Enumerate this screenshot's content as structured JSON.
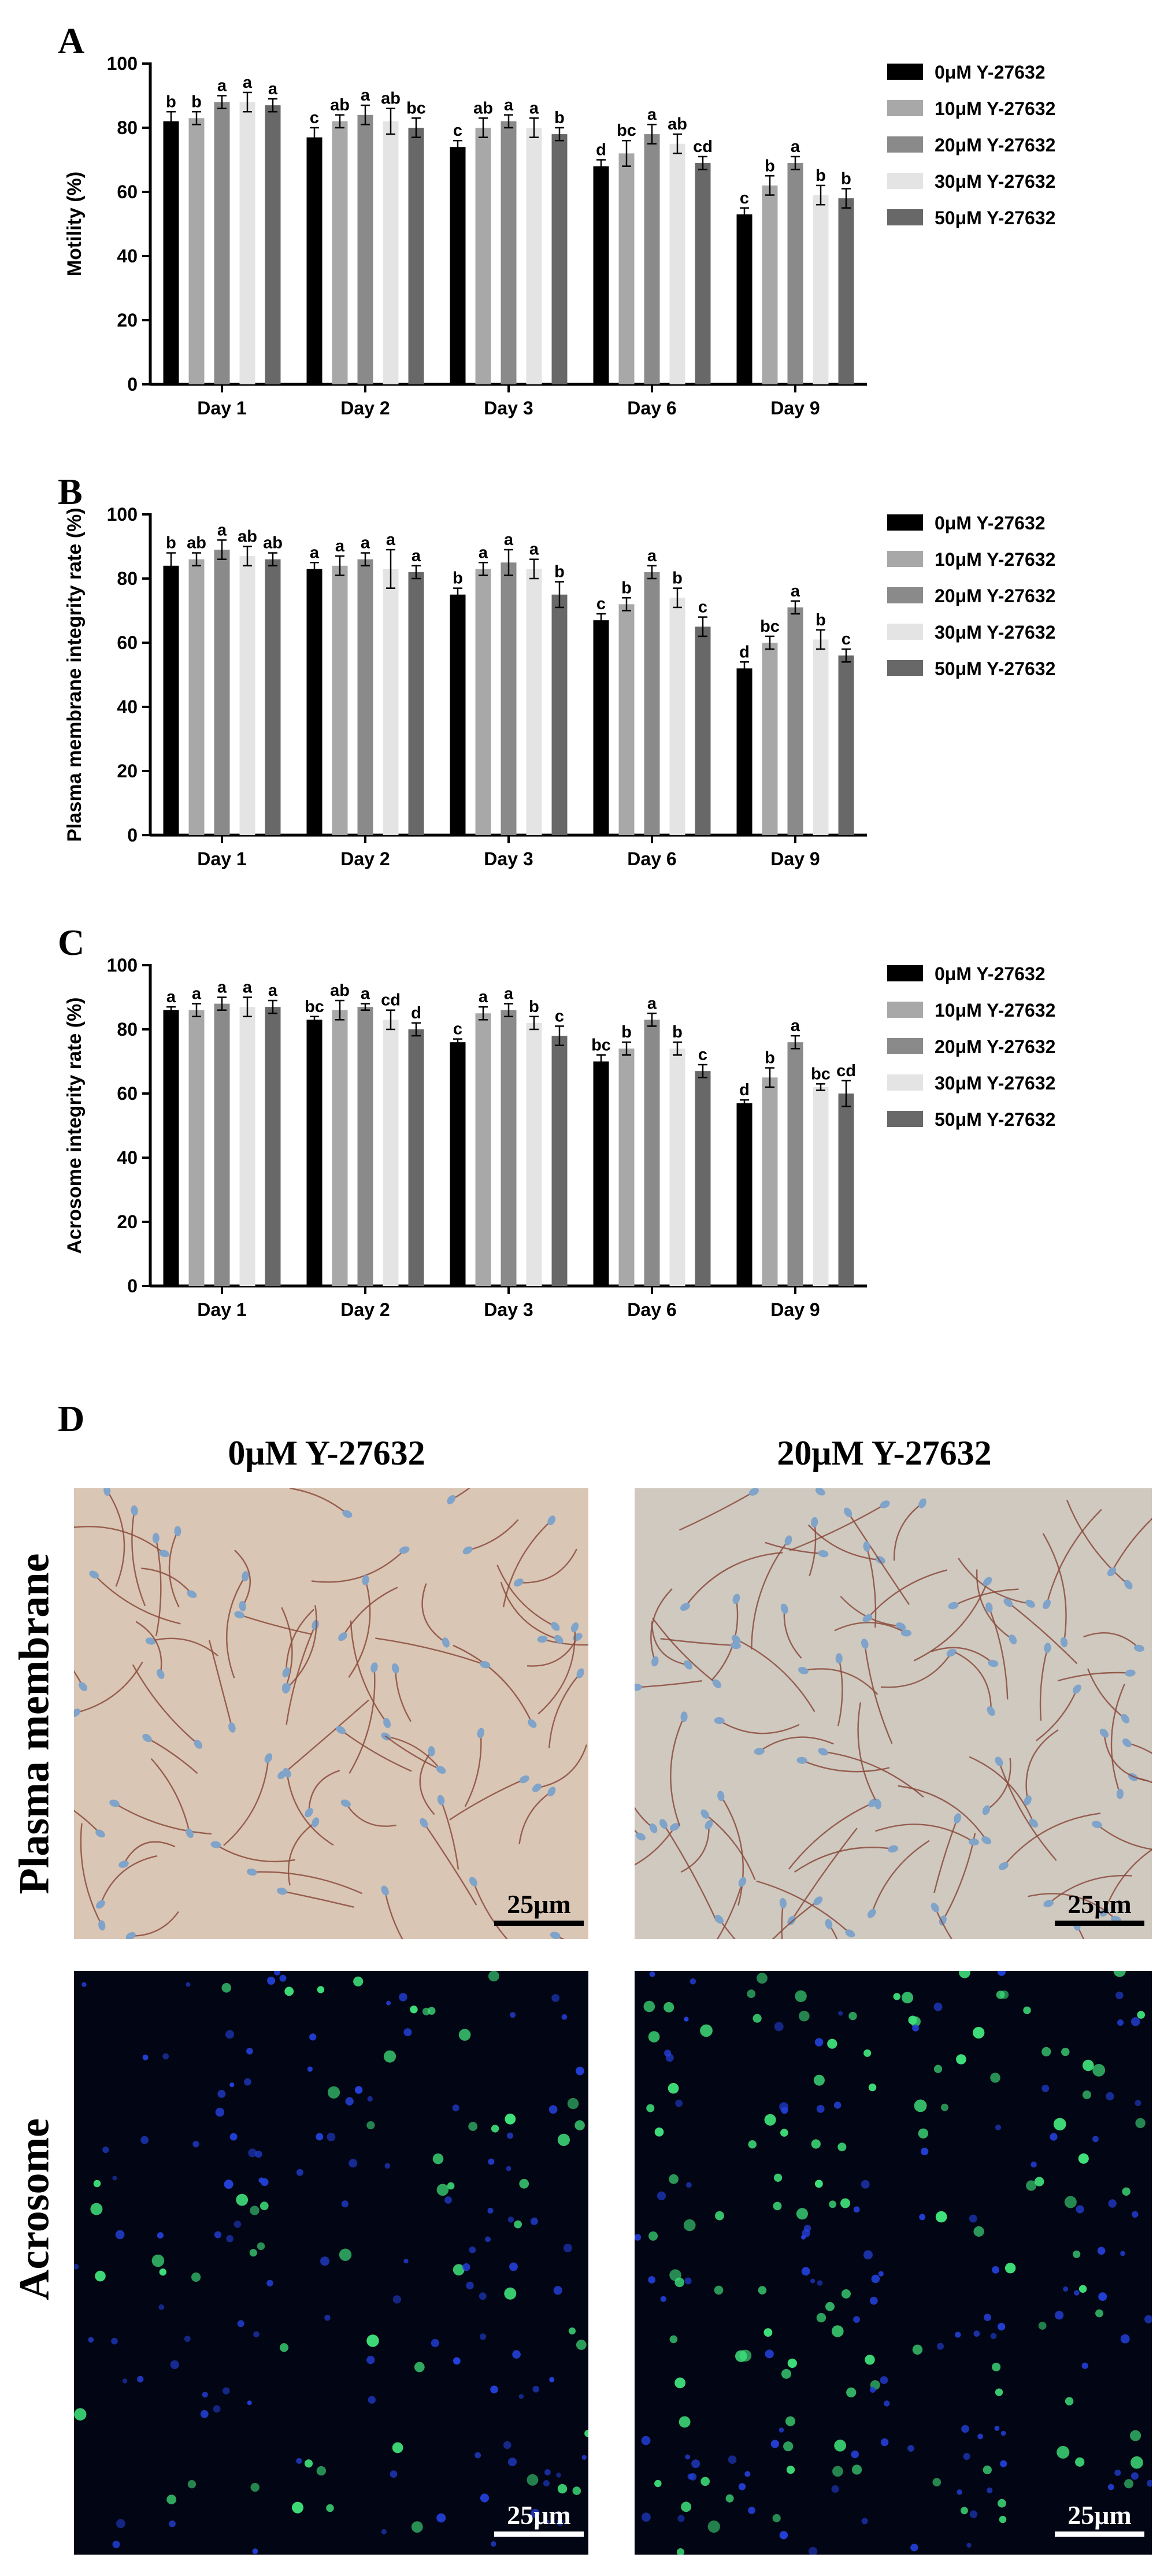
{
  "chart_data": [
    {
      "panel": "A",
      "type": "bar",
      "categories": [
        "Day 1",
        "Day 2",
        "Day 3",
        "Day 6",
        "Day 9"
      ],
      "ylabel": "Motility (%)",
      "ylim": [
        0,
        100
      ],
      "yticks": [
        0,
        20,
        40,
        60,
        80,
        100
      ],
      "legend_position": "right",
      "series": [
        {
          "name": "0μM Y-27632",
          "color": "#000000",
          "values": [
            82,
            77,
            74,
            68,
            53
          ],
          "errors": [
            3,
            3,
            2,
            2,
            2
          ],
          "labels": [
            "b",
            "c",
            "c",
            "d",
            "c"
          ]
        },
        {
          "name": "10μM Y-27632",
          "color": "#a8a8a8",
          "values": [
            83,
            82,
            80,
            72,
            62
          ],
          "errors": [
            2,
            2,
            3,
            4,
            3
          ],
          "labels": [
            "b",
            "ab",
            "ab",
            "bc",
            "b"
          ]
        },
        {
          "name": "20μM Y-27632",
          "color": "#8a8a8a",
          "values": [
            88,
            84,
            82,
            78,
            69
          ],
          "errors": [
            2,
            3,
            2,
            3,
            2
          ],
          "labels": [
            "a",
            "a",
            "a",
            "a",
            "a"
          ]
        },
        {
          "name": "30μM Y-27632",
          "color": "#e4e4e4",
          "values": [
            88,
            82,
            80,
            75,
            59
          ],
          "errors": [
            3,
            4,
            3,
            3,
            3
          ],
          "labels": [
            "a",
            "ab",
            "a",
            "ab",
            "b"
          ]
        },
        {
          "name": "50μM Y-27632",
          "color": "#686868",
          "values": [
            87,
            80,
            78,
            69,
            58
          ],
          "errors": [
            2,
            3,
            2,
            2,
            3
          ],
          "labels": [
            "a",
            "bc",
            "b",
            "cd",
            "b"
          ]
        }
      ]
    },
    {
      "panel": "B",
      "type": "bar",
      "categories": [
        "Day 1",
        "Day 2",
        "Day 3",
        "Day 6",
        "Day 9"
      ],
      "ylabel": "Plasma membrane integrity rate (%)",
      "ylim": [
        0,
        100
      ],
      "yticks": [
        0,
        20,
        40,
        60,
        80,
        100
      ],
      "legend_position": "right",
      "series": [
        {
          "name": "0μM Y-27632",
          "color": "#000000",
          "values": [
            84,
            83,
            75,
            67,
            52
          ],
          "errors": [
            4,
            2,
            2,
            2,
            2
          ],
          "labels": [
            "b",
            "a",
            "b",
            "c",
            "d"
          ]
        },
        {
          "name": "10μM Y-27632",
          "color": "#a8a8a8",
          "values": [
            86,
            84,
            83,
            72,
            60
          ],
          "errors": [
            2,
            3,
            2,
            2,
            2
          ],
          "labels": [
            "ab",
            "a",
            "a",
            "b",
            "bc"
          ]
        },
        {
          "name": "20μM Y-27632",
          "color": "#8a8a8a",
          "values": [
            89,
            86,
            85,
            82,
            71
          ],
          "errors": [
            3,
            2,
            4,
            2,
            2
          ],
          "labels": [
            "a",
            "a",
            "a",
            "a",
            "a"
          ]
        },
        {
          "name": "30μM Y-27632",
          "color": "#e4e4e4",
          "values": [
            87,
            83,
            83,
            74,
            61
          ],
          "errors": [
            3,
            6,
            3,
            3,
            3
          ],
          "labels": [
            "ab",
            "a",
            "a",
            "b",
            "b"
          ]
        },
        {
          "name": "50μM Y-27632",
          "color": "#686868",
          "values": [
            86,
            82,
            75,
            65,
            56
          ],
          "errors": [
            2,
            2,
            4,
            3,
            2
          ],
          "labels": [
            "ab",
            "a",
            "b",
            "c",
            "c"
          ]
        }
      ]
    },
    {
      "panel": "C",
      "type": "bar",
      "categories": [
        "Day 1",
        "Day 2",
        "Day 3",
        "Day 6",
        "Day 9"
      ],
      "ylabel": "Acrosome integrity rate (%)",
      "ylim": [
        0,
        100
      ],
      "yticks": [
        0,
        20,
        40,
        60,
        80,
        100
      ],
      "legend_position": "right",
      "series": [
        {
          "name": "0μM Y-27632",
          "color": "#000000",
          "values": [
            86,
            83,
            76,
            70,
            57
          ],
          "errors": [
            1,
            1,
            1,
            2,
            1
          ],
          "labels": [
            "a",
            "bc",
            "c",
            "bc",
            "d"
          ]
        },
        {
          "name": "10μM Y-27632",
          "color": "#a8a8a8",
          "values": [
            86,
            86,
            85,
            74,
            65
          ],
          "errors": [
            2,
            3,
            2,
            2,
            3
          ],
          "labels": [
            "a",
            "ab",
            "a",
            "b",
            "b"
          ]
        },
        {
          "name": "20μM Y-27632",
          "color": "#8a8a8a",
          "values": [
            88,
            87,
            86,
            83,
            76
          ],
          "errors": [
            2,
            1,
            2,
            2,
            2
          ],
          "labels": [
            "a",
            "a",
            "a",
            "a",
            "a"
          ]
        },
        {
          "name": "30μM Y-27632",
          "color": "#e4e4e4",
          "values": [
            87,
            83,
            82,
            74,
            62
          ],
          "errors": [
            3,
            3,
            2,
            2,
            1
          ],
          "labels": [
            "a",
            "cd",
            "b",
            "b",
            "bc"
          ]
        },
        {
          "name": "50μM Y-27632",
          "color": "#686868",
          "values": [
            87,
            80,
            78,
            67,
            60
          ],
          "errors": [
            2,
            2,
            3,
            2,
            4
          ],
          "labels": [
            "a",
            "d",
            "c",
            "c",
            "cd"
          ]
        }
      ]
    }
  ],
  "panel_d": {
    "letter": "D",
    "col_titles": [
      "0μM Y-27632",
      "20μM Y-27632"
    ],
    "row_titles": [
      "Plasma membrane",
      "Acrosome"
    ],
    "scale_label": "25μm",
    "colors": {
      "brightfield_left": "#d9c6b4",
      "brightfield_right": "#cfc9bf",
      "fluorescence_bg": "#020514",
      "sperm_tail": "#8b4a3c",
      "sperm_head": "#7fa3c9",
      "acrosome_green": "#3fe07a",
      "nucleus_blue": "#2340d8"
    }
  }
}
